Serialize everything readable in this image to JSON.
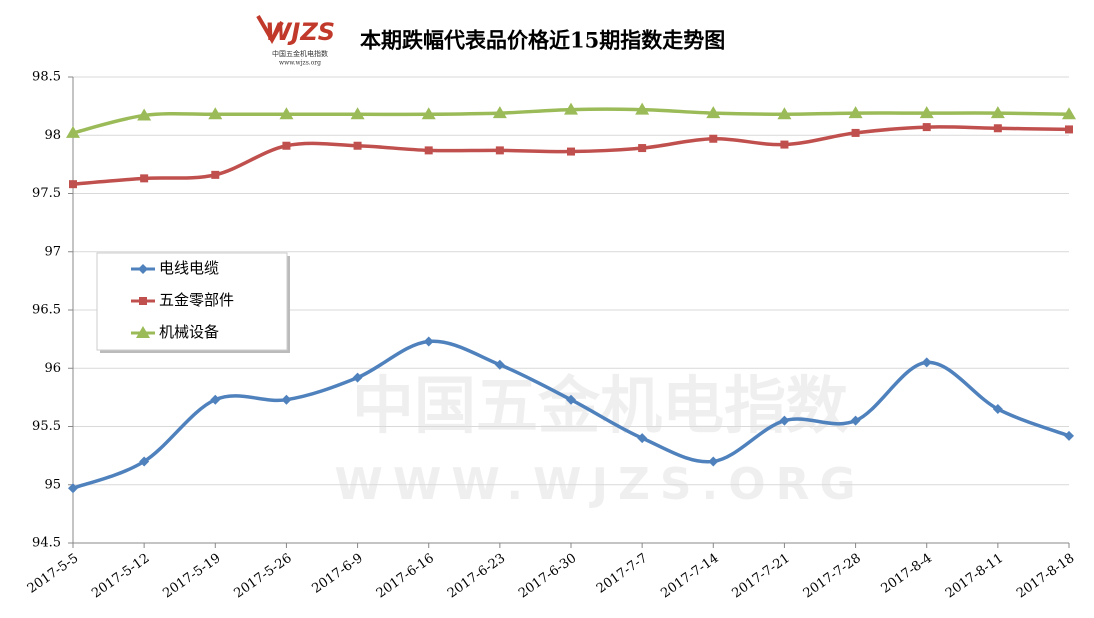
{
  "chart_data": {
    "type": "line",
    "title": "本期跌幅代表品价格近15期指数走势图",
    "logo": {
      "mark": "WJZS",
      "name": "中国五金机电指数",
      "url": "www.wjzs.org"
    },
    "watermark": {
      "name": "中国五金机电指数",
      "url": "WWW.WJZS.ORG"
    },
    "categories": [
      "2017-5-5",
      "2017-5-12",
      "2017-5-19",
      "2017-5-26",
      "2017-6-9",
      "2017-6-16",
      "2017-6-23",
      "2017-6-30",
      "2017-7-7",
      "2017-7-14",
      "2017-7-21",
      "2017-7-28",
      "2017-8-4",
      "2017-8-11",
      "2017-8-18"
    ],
    "series": [
      {
        "name": "电线电缆",
        "color": "#4f81bd",
        "marker": "diamond",
        "values": [
          94.97,
          95.2,
          95.73,
          95.73,
          95.92,
          96.23,
          96.03,
          95.73,
          95.4,
          95.2,
          95.55,
          95.55,
          96.05,
          95.65,
          95.42
        ]
      },
      {
        "name": "五金零部件",
        "color": "#c0504d",
        "marker": "square",
        "values": [
          97.58,
          97.63,
          97.66,
          97.91,
          97.91,
          97.87,
          97.87,
          97.86,
          97.89,
          97.97,
          97.92,
          98.02,
          98.07,
          98.06,
          98.05
        ]
      },
      {
        "name": "机械设备",
        "color": "#9bbb59",
        "marker": "triangle",
        "values": [
          98.02,
          98.17,
          98.18,
          98.18,
          98.18,
          98.18,
          98.19,
          98.22,
          98.22,
          98.19,
          98.18,
          98.19,
          98.19,
          98.19,
          98.18
        ]
      }
    ],
    "ylim": [
      94.5,
      98.5
    ],
    "yticks": [
      94.5,
      95,
      95.5,
      96,
      96.5,
      97,
      97.5,
      98,
      98.5
    ],
    "grid": true,
    "legend": "left"
  }
}
